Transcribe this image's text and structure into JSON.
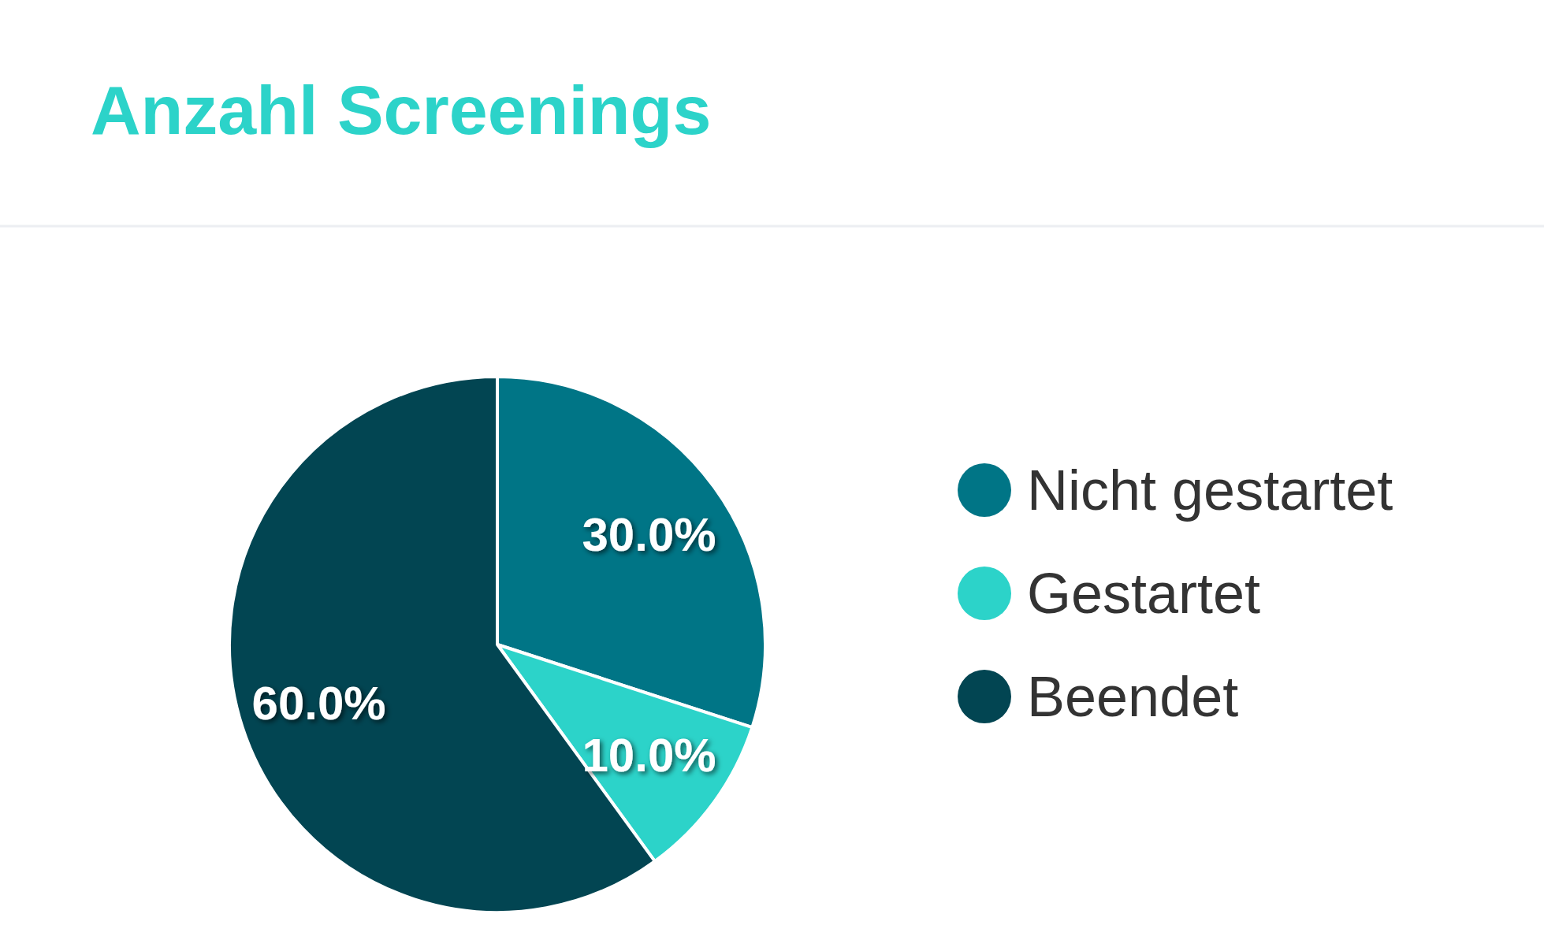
{
  "chart_data": {
    "type": "pie",
    "title": "Anzahl Screenings",
    "categories": [
      "Nicht gestartet",
      "Gestartet",
      "Beendet"
    ],
    "values": [
      30,
      10,
      60
    ],
    "colors": [
      "#007586",
      "#2cd3c9",
      "#024552"
    ],
    "value_labels": [
      "30.0%",
      "10.0%",
      "60.0%"
    ],
    "legend": "right"
  }
}
